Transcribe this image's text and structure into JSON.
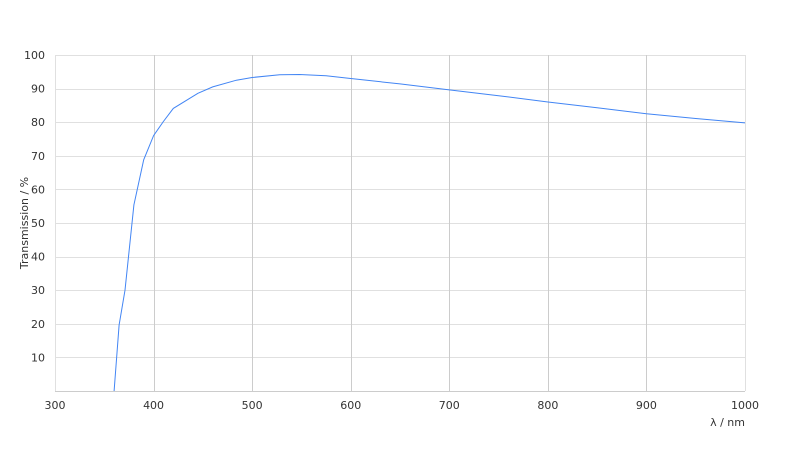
{
  "chart_data": {
    "type": "line",
    "title": "",
    "xlabel": "λ / nm",
    "ylabel": "Transmission / %",
    "xlim": [
      300,
      1000
    ],
    "ylim": [
      0,
      100
    ],
    "x_ticks": [
      300,
      400,
      500,
      600,
      700,
      800,
      900,
      1000
    ],
    "y_ticks": [
      10,
      20,
      30,
      40,
      50,
      60,
      70,
      80,
      90,
      100
    ],
    "grid": true,
    "series": [
      {
        "color": "#4285f4",
        "x": [
          360,
          365,
          371,
          380,
          390,
          400,
          410,
          420,
          445,
          460,
          484,
          500,
          528,
          548,
          575,
          600,
          650,
          700,
          750,
          800,
          850,
          900,
          950,
          1000
        ],
        "y": [
          0,
          19.6,
          30,
          55.4,
          68.8,
          76,
          80.2,
          84.1,
          88.6,
          90.5,
          92.5,
          93.3,
          94.1,
          94.2,
          93.8,
          93,
          91.4,
          89.6,
          87.9,
          86,
          84.3,
          82.5,
          81.1,
          79.8
        ]
      }
    ]
  }
}
